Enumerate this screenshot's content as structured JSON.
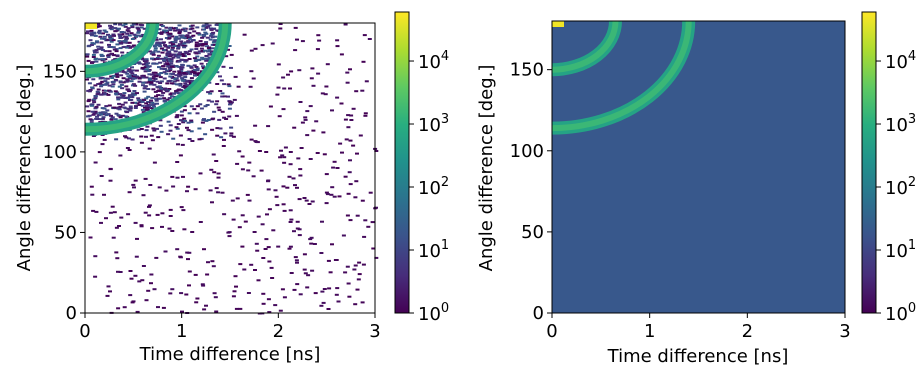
{
  "chart_data": [
    {
      "type": "heatmap",
      "xlabel": "Time difference [ns]",
      "ylabel": "Angle difference [deg.]",
      "xlim": [
        0,
        3
      ],
      "ylim": [
        0,
        180
      ],
      "xticks": [
        "0",
        "1",
        "2",
        "3"
      ],
      "yticks": [
        "0",
        "50",
        "100",
        "150"
      ],
      "colorbar": {
        "scale": "log",
        "range": [
          1,
          60000
        ],
        "ticks": [
          {
            "base": "10",
            "exp": "0"
          },
          {
            "base": "10",
            "exp": "1"
          },
          {
            "base": "10",
            "exp": "2"
          },
          {
            "base": "10",
            "exp": "3"
          },
          {
            "base": "10",
            "exp": "4"
          }
        ]
      },
      "background": "white (empty bins)",
      "features": [
        {
          "kind": "corner-peak",
          "t": 0.02,
          "angle": 180,
          "count": 50000
        },
        {
          "kind": "arc",
          "t_at_180": 0.7,
          "angle_at_t0": 150,
          "count": 1000
        },
        {
          "kind": "arc",
          "t_at_180": 1.45,
          "angle_at_t0": 114,
          "count": 1000
        },
        {
          "kind": "dense-scatter-region",
          "t_range": [
            0,
            1.5
          ],
          "angle_range": [
            108,
            180
          ],
          "count": 10
        },
        {
          "kind": "sparse-scatter",
          "t_range": [
            0,
            3
          ],
          "angle_range": [
            0,
            180
          ],
          "count": 1
        }
      ]
    },
    {
      "type": "heatmap",
      "xlabel": "Time difference [ns]",
      "ylabel": "Angle difference [deg.]",
      "xlim": [
        0,
        3
      ],
      "ylim": [
        0,
        180
      ],
      "xticks": [
        "0",
        "1",
        "2",
        "3"
      ],
      "yticks": [
        "0",
        "50",
        "100",
        "150"
      ],
      "colorbar": {
        "scale": "log",
        "range": [
          1,
          60000
        ],
        "ticks": [
          {
            "base": "10",
            "exp": "0"
          },
          {
            "base": "10",
            "exp": "1"
          },
          {
            "base": "10",
            "exp": "2"
          },
          {
            "base": "10",
            "exp": "3"
          },
          {
            "base": "10",
            "exp": "4"
          }
        ]
      },
      "background_count": 20,
      "features": [
        {
          "kind": "corner-peak",
          "t": 0.02,
          "angle": 180,
          "count": 50000
        },
        {
          "kind": "arc",
          "t_at_180": 0.65,
          "angle_at_t0": 150,
          "count": 1000
        },
        {
          "kind": "arc",
          "t_at_180": 1.4,
          "angle_at_t0": 114,
          "count": 1000
        }
      ]
    }
  ]
}
